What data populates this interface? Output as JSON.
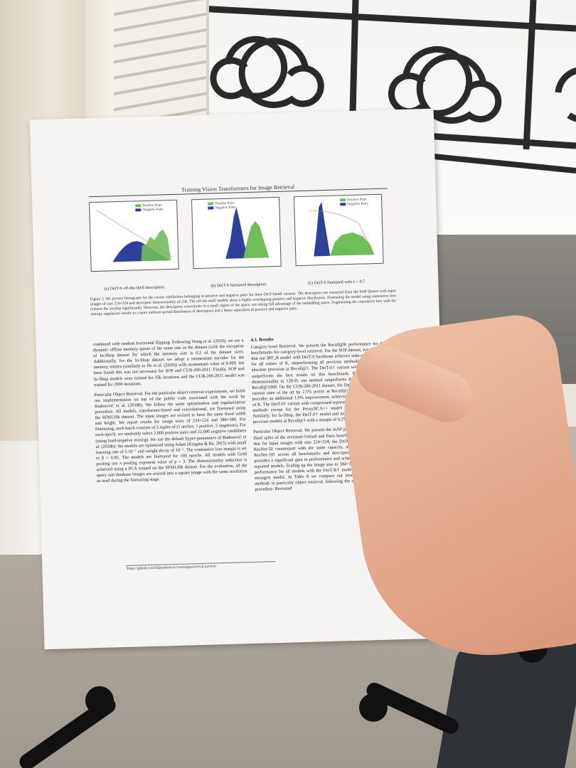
{
  "paper": {
    "running_head": "Training Vision Transformers for Image Retrieval",
    "figures": [
      {
        "legend": [
          "Positive Pairs",
          "Negative Pairs"
        ],
        "caption": "(a) DeiT-S off-the-shelf descriptors."
      },
      {
        "legend": [
          "Positive Pairs",
          "Negative Pairs"
        ],
        "caption": "(b) DeiT-S finetuned descriptors."
      },
      {
        "legend": [
          "Positive Pairs",
          "Negative Pairs"
        ],
        "caption": "(c) DeiT-S finetuned with λ = 0.7."
      }
    ],
    "figure_caption": "Figure 5. We present histograms for the cosine similarities belonging to positive and negative pairs for three DeiT-Small variants. The descriptors are extracted from the SOP dataset with input images of size 224×224 and descriptor dimensionality of 256. The off-the-shelf models show a highly overlapping positive and negative distribution. Finetuning the model using contrastive loss reduces the overlap significantly. However, the descriptors concentrate in a small region of the space, not taking full advantage of the embedding space. Augmenting the contrastive loss with the entropy regularizer results in a more uniform spread distribution of descriptors and a better separation of positive and negative pairs.",
    "left_col": [
      "combined with random horizontal flipping. Following Wang et al. (2020), we use a dynamic offline memory queue of the same size as the dataset (with the exception of In-Shop dataset for which the memory size is 0.2 of the dataset size). Additionally, for the In-Shop dataset we adopt a momentum encoder for the memory entries (similarly to He et al. (2020)) with momentum value of 0.999. We have found this was not necessary for SOP and CUB-200-2011. Finally, SOP and In-Shop models were trained for 35k iterations and the CUB-200-2011 model was trained for 2000 iterations.",
      "Particular Object Retrieval. For the particular object retrieval experiments, we build our implementation on top of the public code associated with the work by Radenović et al. (2018b). We follow the same optimization and regularization procedure. All models, transformer-based and convolutional, are finetuned using the SFM120k dataset. The input images are resized to have the same fixed width and height. We report results for image sizes of 224×224 and 384×384. For finetuning, each batch consists of 5 tuples of (1 anchor, 1 positive, 5 negatives). For each epoch, we randomly select 2,000 positive pairs and 22,000 negative candidates (using hard-negative mining). We use the default hyper-parameters of Radenović et al. (2018b): the models are optimized using Adam (Kingma & Ba, 2015) with small learning rate of 5.10⁻⁷ and weight decay of 10⁻⁶. The contrastive loss margin is set to β = 0.85. The models are finetuned for 100 epochs. All models with GeM pooling use a pooling exponent value of p = 3. The dimensionality reduction is achieved using a PCA trained on the SFM120k dataset. For the evaluation, all the query and database images are resized into a square image with the same resolution as used during the finetuning stage."
    ],
    "right_heading": "4.3. Results",
    "right_col": [
      "Category-level Retrieval. We present the Recall@K performance for three public benchmarks for category-level retrieval. For the SOP dataset, we can see in Table 2 that our IRT_R model with DeiT-S backbone achieves state-of-the-art performance for all values of K, outperforming all previous methods by a margin of 2.6% absolute precision at Recall@1. The DeiT-S† variant with distillation pre-training outperforms the best results on this benchmark. Even when reducing the dimensionality to 128-D, our method outperforms the other convnets except at Recall@1000. On the CUB-200-2011 dataset, the DeiT-S† model outperforms the current state of the art by 2.5% points at Recall@1. The distilled DeiT-S model provides an additional 1.9% improvement, achieving the best results for all values of K. The DeiT-S† variant with compressed representation outperforms all previous methods except for the ProxyNCA++ model that uses 2048-D descriptors. Similarly, for In-Shop, the DeiT-S† model and its distilled variant outperforms all previous models at Recall@1 with a margin of 0.2% and 0.6% respectively.",
      "Particular Object Retrieval. We present the mAP performance for the Medium and Hard splits of the revisited Oxford and Paris benchmarks in Table 7. First observe that for input images with size 224×224, the DeiT-S† backbone outperforms its ResNet-50 counterpart with the same capacity, as well as the higher capacity ResNet-101 across all benchmarks and descriptor sizes. The larger DeiT-B† provides a significant gain in performance and achieves the best result among the reported models. Scaling up the image size to 384×384 considerably improves the performance for all models with the DeiT-B† model retaining its position as the strongest model. In Table 8 we compare our model to strong state-of-the-art methods in particular object retrieval, following the standard extensive evaluation procedure. Revisited"
    ],
    "footnote": "¹https://github.com/filipradenovic/cnnimageretrieval-pytorch"
  },
  "colors": {
    "positive": "#6fbe5a",
    "negative": "#2f3f9a",
    "paper": "#f5f4f2"
  }
}
